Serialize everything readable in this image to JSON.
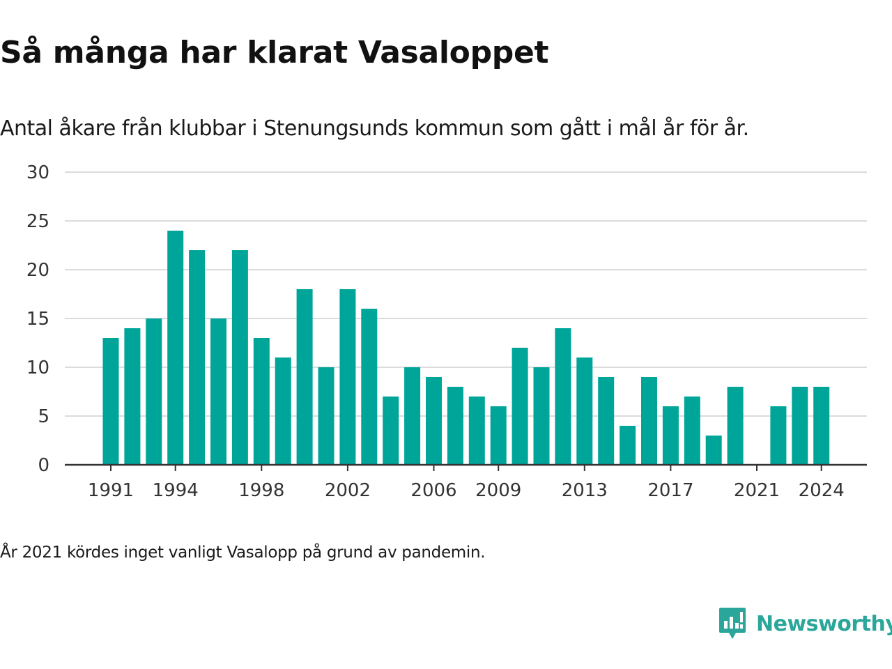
{
  "title": "Så många har klarat Vasaloppet",
  "subtitle": "Antal åkare från klubbar i Stenungsunds kommun som gått i mål år för år.",
  "note": "År 2021 kördes inget vanligt Vasalopp på grund av pandemin.",
  "brand": {
    "name": "Newsworthy",
    "icon": "newsworthy-chart-icon",
    "color": "#2aa69a"
  },
  "chart_data": {
    "type": "bar",
    "x": [
      1991,
      1992,
      1993,
      1994,
      1995,
      1996,
      1997,
      1998,
      1999,
      2000,
      2001,
      2002,
      2003,
      2004,
      2005,
      2006,
      2007,
      2008,
      2009,
      2010,
      2011,
      2012,
      2013,
      2014,
      2015,
      2016,
      2017,
      2018,
      2019,
      2020,
      2021,
      2022,
      2023,
      2024
    ],
    "values": [
      13,
      14,
      15,
      24,
      22,
      15,
      22,
      13,
      11,
      18,
      10,
      18,
      16,
      7,
      10,
      9,
      8,
      7,
      6,
      12,
      10,
      14,
      11,
      9,
      4,
      9,
      6,
      7,
      3,
      8,
      null,
      6,
      8,
      8
    ],
    "xticks": [
      1991,
      1994,
      1998,
      2002,
      2006,
      2009,
      2013,
      2017,
      2021,
      2024
    ],
    "yticks": [
      0,
      5,
      10,
      15,
      20,
      25,
      30
    ],
    "ylim": [
      0,
      30
    ],
    "xlabel": "",
    "ylabel": "",
    "bar_color": "#00a59a",
    "grid": true,
    "legend": false
  }
}
